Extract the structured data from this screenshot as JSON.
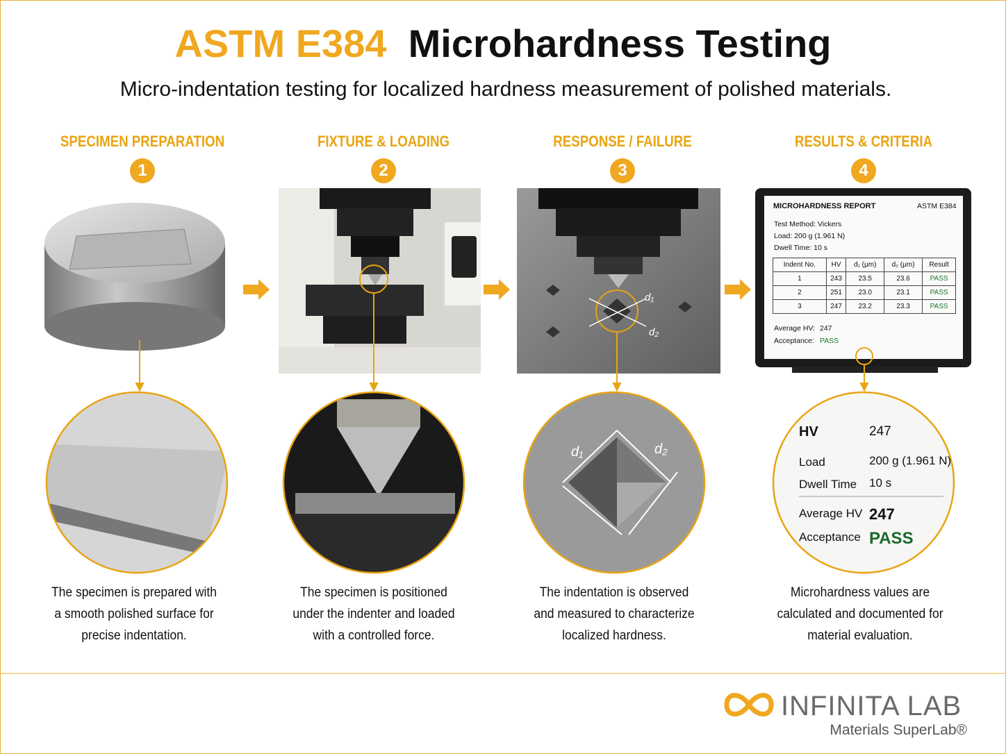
{
  "header": {
    "title_code": "ASTM E384",
    "title_rest": "Microhardness Testing",
    "subtitle": "Micro-indentation testing for localized hardness measurement of polished materials."
  },
  "steps": [
    {
      "label": "SPECIMEN PREPARATION",
      "number": "1",
      "description": "The specimen is prepared with a smooth polished surface for precise indentation."
    },
    {
      "label": "FIXTURE & LOADING",
      "number": "2",
      "description": "The specimen is positioned under the indenter and loaded with a controlled force."
    },
    {
      "label": "RESPONSE / FAILURE",
      "number": "3",
      "description": "The indentation is observed and measured to characterize localized hardness."
    },
    {
      "label": "RESULTS & CRITERIA",
      "number": "4",
      "description": "Microhardness values are calculated and documented for material evaluation."
    }
  ],
  "indent_labels": {
    "d1": "d₁",
    "d2": "d₂"
  },
  "report": {
    "title": "MICROHARDNESS REPORT",
    "standard": "ASTM E384",
    "meta": [
      "Test Method: Vickers",
      "Load: 200 g (1.961 N)",
      "Dwell Time: 10 s"
    ],
    "headers": [
      "Indent No.",
      "HV",
      "d₁ (μm)",
      "d₂ (μm)",
      "Result"
    ],
    "rows": [
      [
        "1",
        "243",
        "23.5",
        "23.6",
        "PASS"
      ],
      [
        "2",
        "251",
        "23.0",
        "23.1",
        "PASS"
      ],
      [
        "3",
        "247",
        "23.2",
        "23.3",
        "PASS"
      ]
    ],
    "average_label": "Average HV:",
    "average_value": "247",
    "acceptance_label": "Acceptance:",
    "acceptance_value": "PASS"
  },
  "summary": [
    {
      "label": "HV",
      "value": "247"
    },
    {
      "label": "Load",
      "value": "200 g (1.961 N)"
    },
    {
      "label": "Dwell Time",
      "value": "10 s"
    },
    {
      "label": "Average HV",
      "value": "247"
    },
    {
      "label": "Acceptance",
      "value": "PASS"
    }
  ],
  "footer": {
    "brand": "INFINITA LAB",
    "tagline": "Materials SuperLab®"
  }
}
